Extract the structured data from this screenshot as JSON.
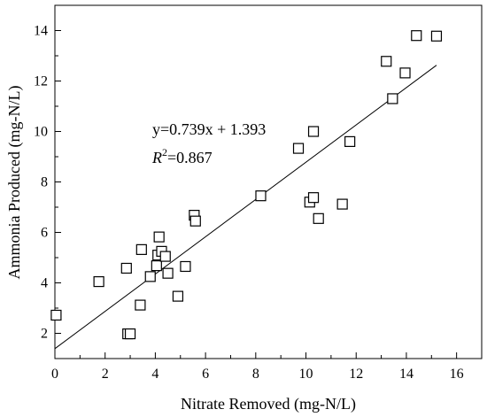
{
  "chart_data": {
    "type": "scatter",
    "xlabel": "Nitrate Removed (mg-N/L)",
    "ylabel": "Ammonia Produced (mg-N/L)",
    "xlim": [
      0,
      17
    ],
    "ylim": [
      1,
      15
    ],
    "x_ticks": [
      0,
      2,
      4,
      6,
      8,
      10,
      12,
      14,
      16
    ],
    "y_ticks": [
      2,
      4,
      6,
      8,
      10,
      12,
      14
    ],
    "grid": false,
    "legend": "none",
    "marker": "open-square",
    "series": [
      {
        "points": [
          {
            "x": 0.05,
            "y": 2.72
          },
          {
            "x": 1.75,
            "y": 4.05
          },
          {
            "x": 2.85,
            "y": 4.58
          },
          {
            "x": 2.9,
            "y": 1.98
          },
          {
            "x": 3.0,
            "y": 1.98
          },
          {
            "x": 3.4,
            "y": 3.12
          },
          {
            "x": 3.45,
            "y": 5.32
          },
          {
            "x": 3.8,
            "y": 4.25
          },
          {
            "x": 4.05,
            "y": 4.68
          },
          {
            "x": 4.1,
            "y": 5.1
          },
          {
            "x": 4.15,
            "y": 5.82
          },
          {
            "x": 4.25,
            "y": 5.25
          },
          {
            "x": 4.4,
            "y": 5.05
          },
          {
            "x": 4.5,
            "y": 4.38
          },
          {
            "x": 4.9,
            "y": 3.47
          },
          {
            "x": 5.2,
            "y": 4.65
          },
          {
            "x": 5.55,
            "y": 6.68
          },
          {
            "x": 5.6,
            "y": 6.45
          },
          {
            "x": 8.2,
            "y": 7.45
          },
          {
            "x": 9.7,
            "y": 9.33
          },
          {
            "x": 10.15,
            "y": 7.2
          },
          {
            "x": 10.3,
            "y": 10.0
          },
          {
            "x": 10.3,
            "y": 7.38
          },
          {
            "x": 10.5,
            "y": 6.55
          },
          {
            "x": 11.45,
            "y": 7.12
          },
          {
            "x": 11.75,
            "y": 9.6
          },
          {
            "x": 13.2,
            "y": 12.78
          },
          {
            "x": 13.45,
            "y": 11.3
          },
          {
            "x": 13.95,
            "y": 12.32
          },
          {
            "x": 14.4,
            "y": 13.8
          },
          {
            "x": 15.2,
            "y": 13.78
          }
        ]
      }
    ],
    "fit_line": {
      "slope": 0.739,
      "intercept": 1.393,
      "x_range": [
        0,
        15.2
      ]
    },
    "annotations": {
      "equation": "y=0.739x + 1.393",
      "r2_label": "R",
      "r2_sup": "2",
      "r2_value": "=0.867"
    },
    "colors": {
      "axis": "#000000",
      "marker": "#000000",
      "background": "#ffffff"
    }
  }
}
